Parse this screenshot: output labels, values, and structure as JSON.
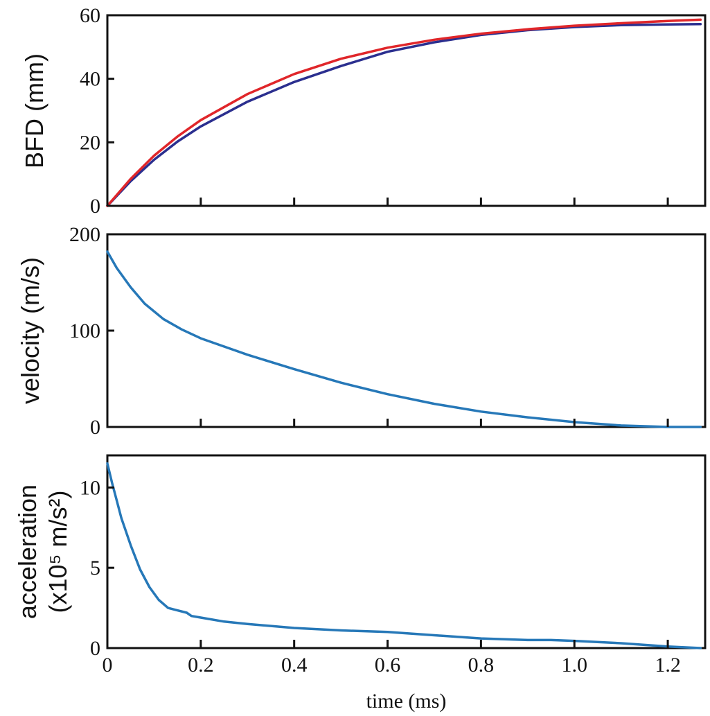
{
  "chart_data": [
    {
      "type": "line",
      "ylabel": "BFD (mm)",
      "xlim": [
        0,
        1.28
      ],
      "ylim": [
        0,
        60
      ],
      "yticks": [
        0,
        20,
        40,
        60
      ],
      "xticks": [
        0,
        0.2,
        0.4,
        0.6,
        0.8,
        1.0,
        1.2
      ],
      "show_xtick_labels": false,
      "series": [
        {
          "color": "#2b2f8f",
          "x": [
            0,
            0.05,
            0.1,
            0.15,
            0.2,
            0.3,
            0.4,
            0.5,
            0.6,
            0.7,
            0.8,
            0.9,
            1.0,
            1.1,
            1.2,
            1.27
          ],
          "y": [
            0,
            7.8,
            14.5,
            20.2,
            25.0,
            32.8,
            39.0,
            44.0,
            48.5,
            51.5,
            53.8,
            55.3,
            56.3,
            56.9,
            57.1,
            57.2
          ]
        },
        {
          "color": "#e0262a",
          "x": [
            0,
            0.05,
            0.1,
            0.15,
            0.2,
            0.3,
            0.4,
            0.5,
            0.6,
            0.7,
            0.8,
            0.9,
            1.0,
            1.1,
            1.2,
            1.27
          ],
          "y": [
            0,
            8.5,
            15.8,
            21.8,
            27.0,
            35.2,
            41.5,
            46.3,
            49.8,
            52.3,
            54.2,
            55.6,
            56.7,
            57.5,
            58.2,
            58.6
          ]
        }
      ]
    },
    {
      "type": "line",
      "ylabel": "velocity (m/s)",
      "xlim": [
        0,
        1.28
      ],
      "ylim": [
        0,
        200
      ],
      "yticks": [
        0,
        100,
        200
      ],
      "xticks": [
        0,
        0.2,
        0.4,
        0.6,
        0.8,
        1.0,
        1.2
      ],
      "show_xtick_labels": false,
      "series": [
        {
          "color": "#2678b8",
          "x": [
            0,
            0.02,
            0.05,
            0.08,
            0.12,
            0.16,
            0.2,
            0.3,
            0.4,
            0.5,
            0.6,
            0.7,
            0.8,
            0.9,
            1.0,
            1.1,
            1.2,
            1.27
          ],
          "y": [
            182,
            165,
            145,
            128,
            112,
            101,
            92,
            75,
            60,
            46,
            34,
            24,
            16,
            10,
            5,
            1.5,
            0,
            0
          ]
        }
      ]
    },
    {
      "type": "line",
      "ylabel": "acceleration",
      "ylabel2": "(x10⁵ m/s²)",
      "xlabel": "time (ms)",
      "xlim": [
        0,
        1.28
      ],
      "ylim": [
        0,
        12
      ],
      "yticks": [
        0,
        5,
        10
      ],
      "xticks": [
        0,
        0.2,
        0.4,
        0.6,
        0.8,
        1.0,
        1.2
      ],
      "xtick_labels": [
        "0",
        "0.2",
        "0.4",
        "0.6",
        "0.8",
        "1.0",
        "1.2"
      ],
      "show_xtick_labels": true,
      "series": [
        {
          "color": "#2678b8",
          "x": [
            0,
            0.01,
            0.02,
            0.03,
            0.05,
            0.07,
            0.09,
            0.11,
            0.13,
            0.15,
            0.17,
            0.18,
            0.2,
            0.25,
            0.3,
            0.4,
            0.5,
            0.6,
            0.7,
            0.8,
            0.9,
            0.95,
            1.0,
            1.1,
            1.2,
            1.27
          ],
          "y": [
            11.5,
            10.3,
            9.2,
            8.1,
            6.4,
            4.9,
            3.8,
            3.0,
            2.5,
            2.35,
            2.2,
            2.0,
            1.9,
            1.65,
            1.5,
            1.25,
            1.1,
            1.0,
            0.8,
            0.6,
            0.5,
            0.5,
            0.45,
            0.3,
            0.1,
            0.0
          ]
        }
      ]
    }
  ]
}
